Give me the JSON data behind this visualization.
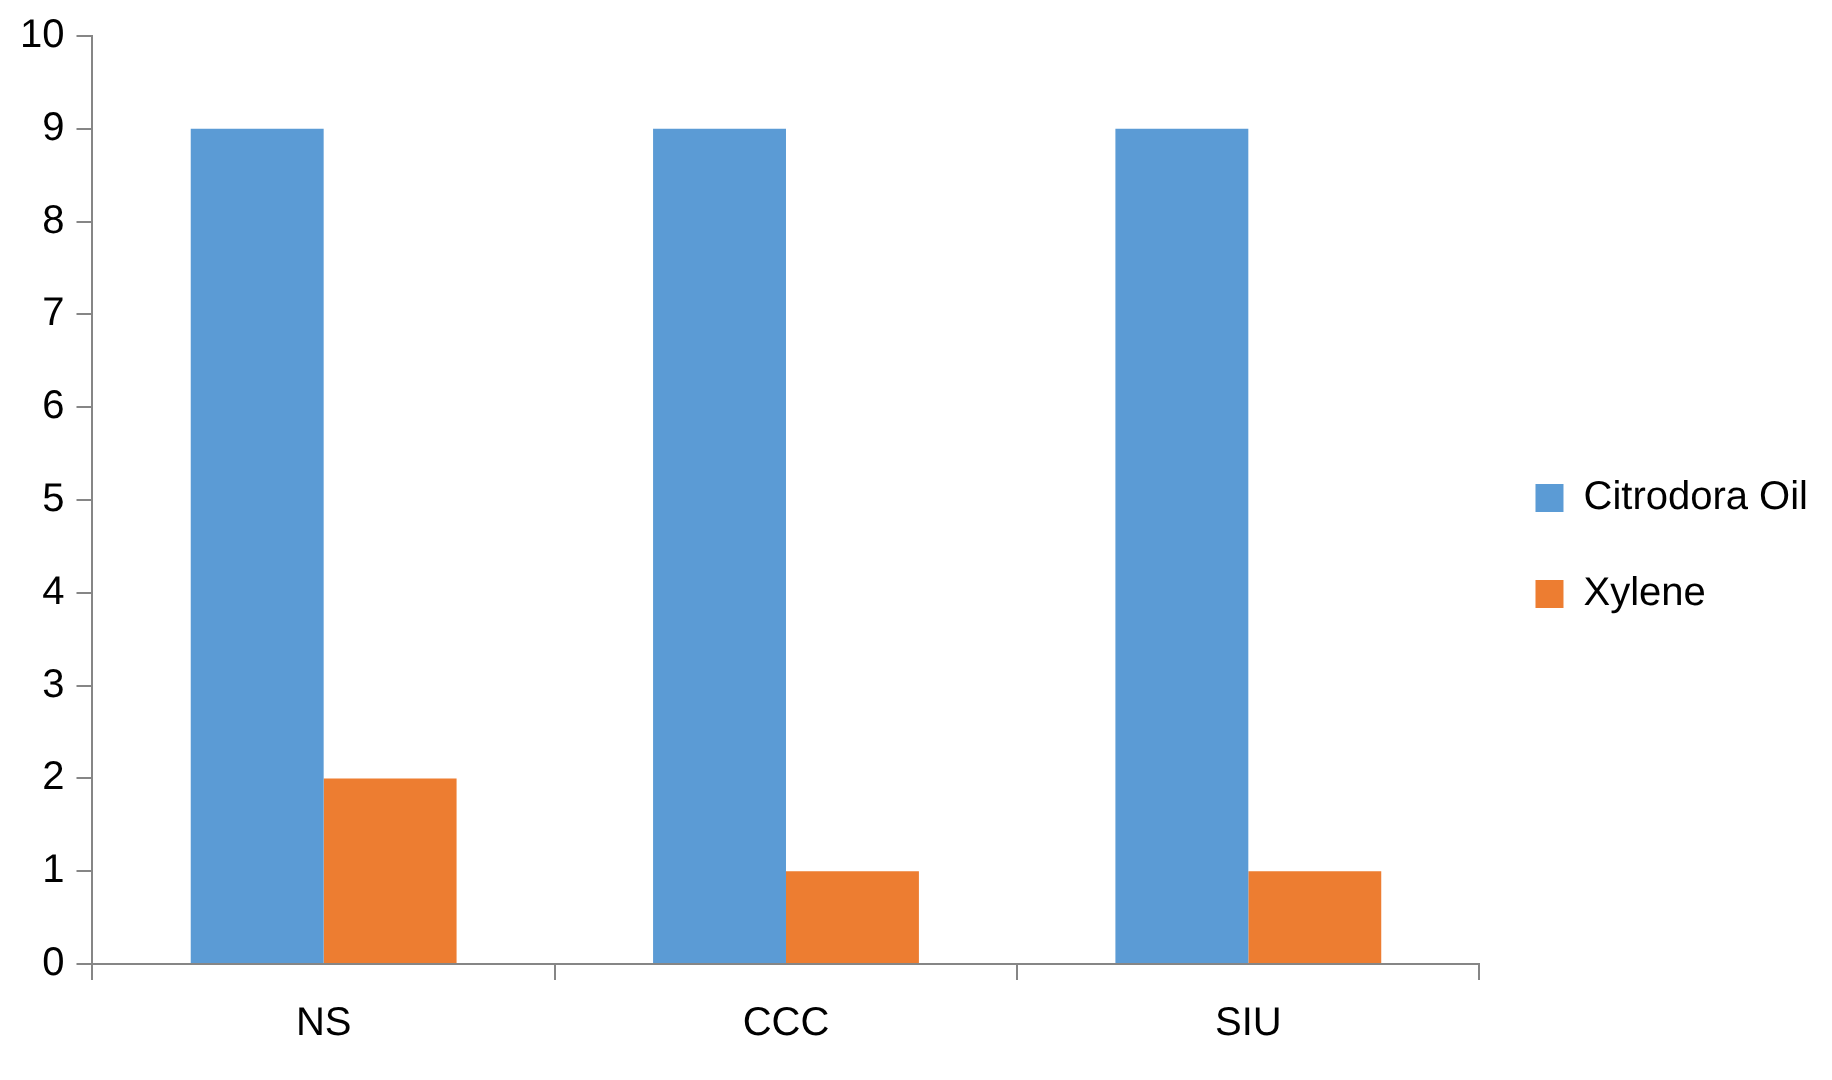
{
  "chart_data": {
    "type": "bar",
    "categories": [
      "NS",
      "CCC",
      "SIU"
    ],
    "series": [
      {
        "name": "Citrodora Oil",
        "color": "#5b9bd5",
        "values": [
          9,
          9,
          9
        ]
      },
      {
        "name": "Xylene",
        "color": "#ed7d31",
        "values": [
          2,
          1,
          1
        ]
      }
    ],
    "ylim": [
      0,
      10
    ],
    "yticks": [
      0,
      1,
      2,
      3,
      4,
      5,
      6,
      7,
      8,
      9,
      10
    ],
    "grid": false,
    "legend": "right"
  }
}
